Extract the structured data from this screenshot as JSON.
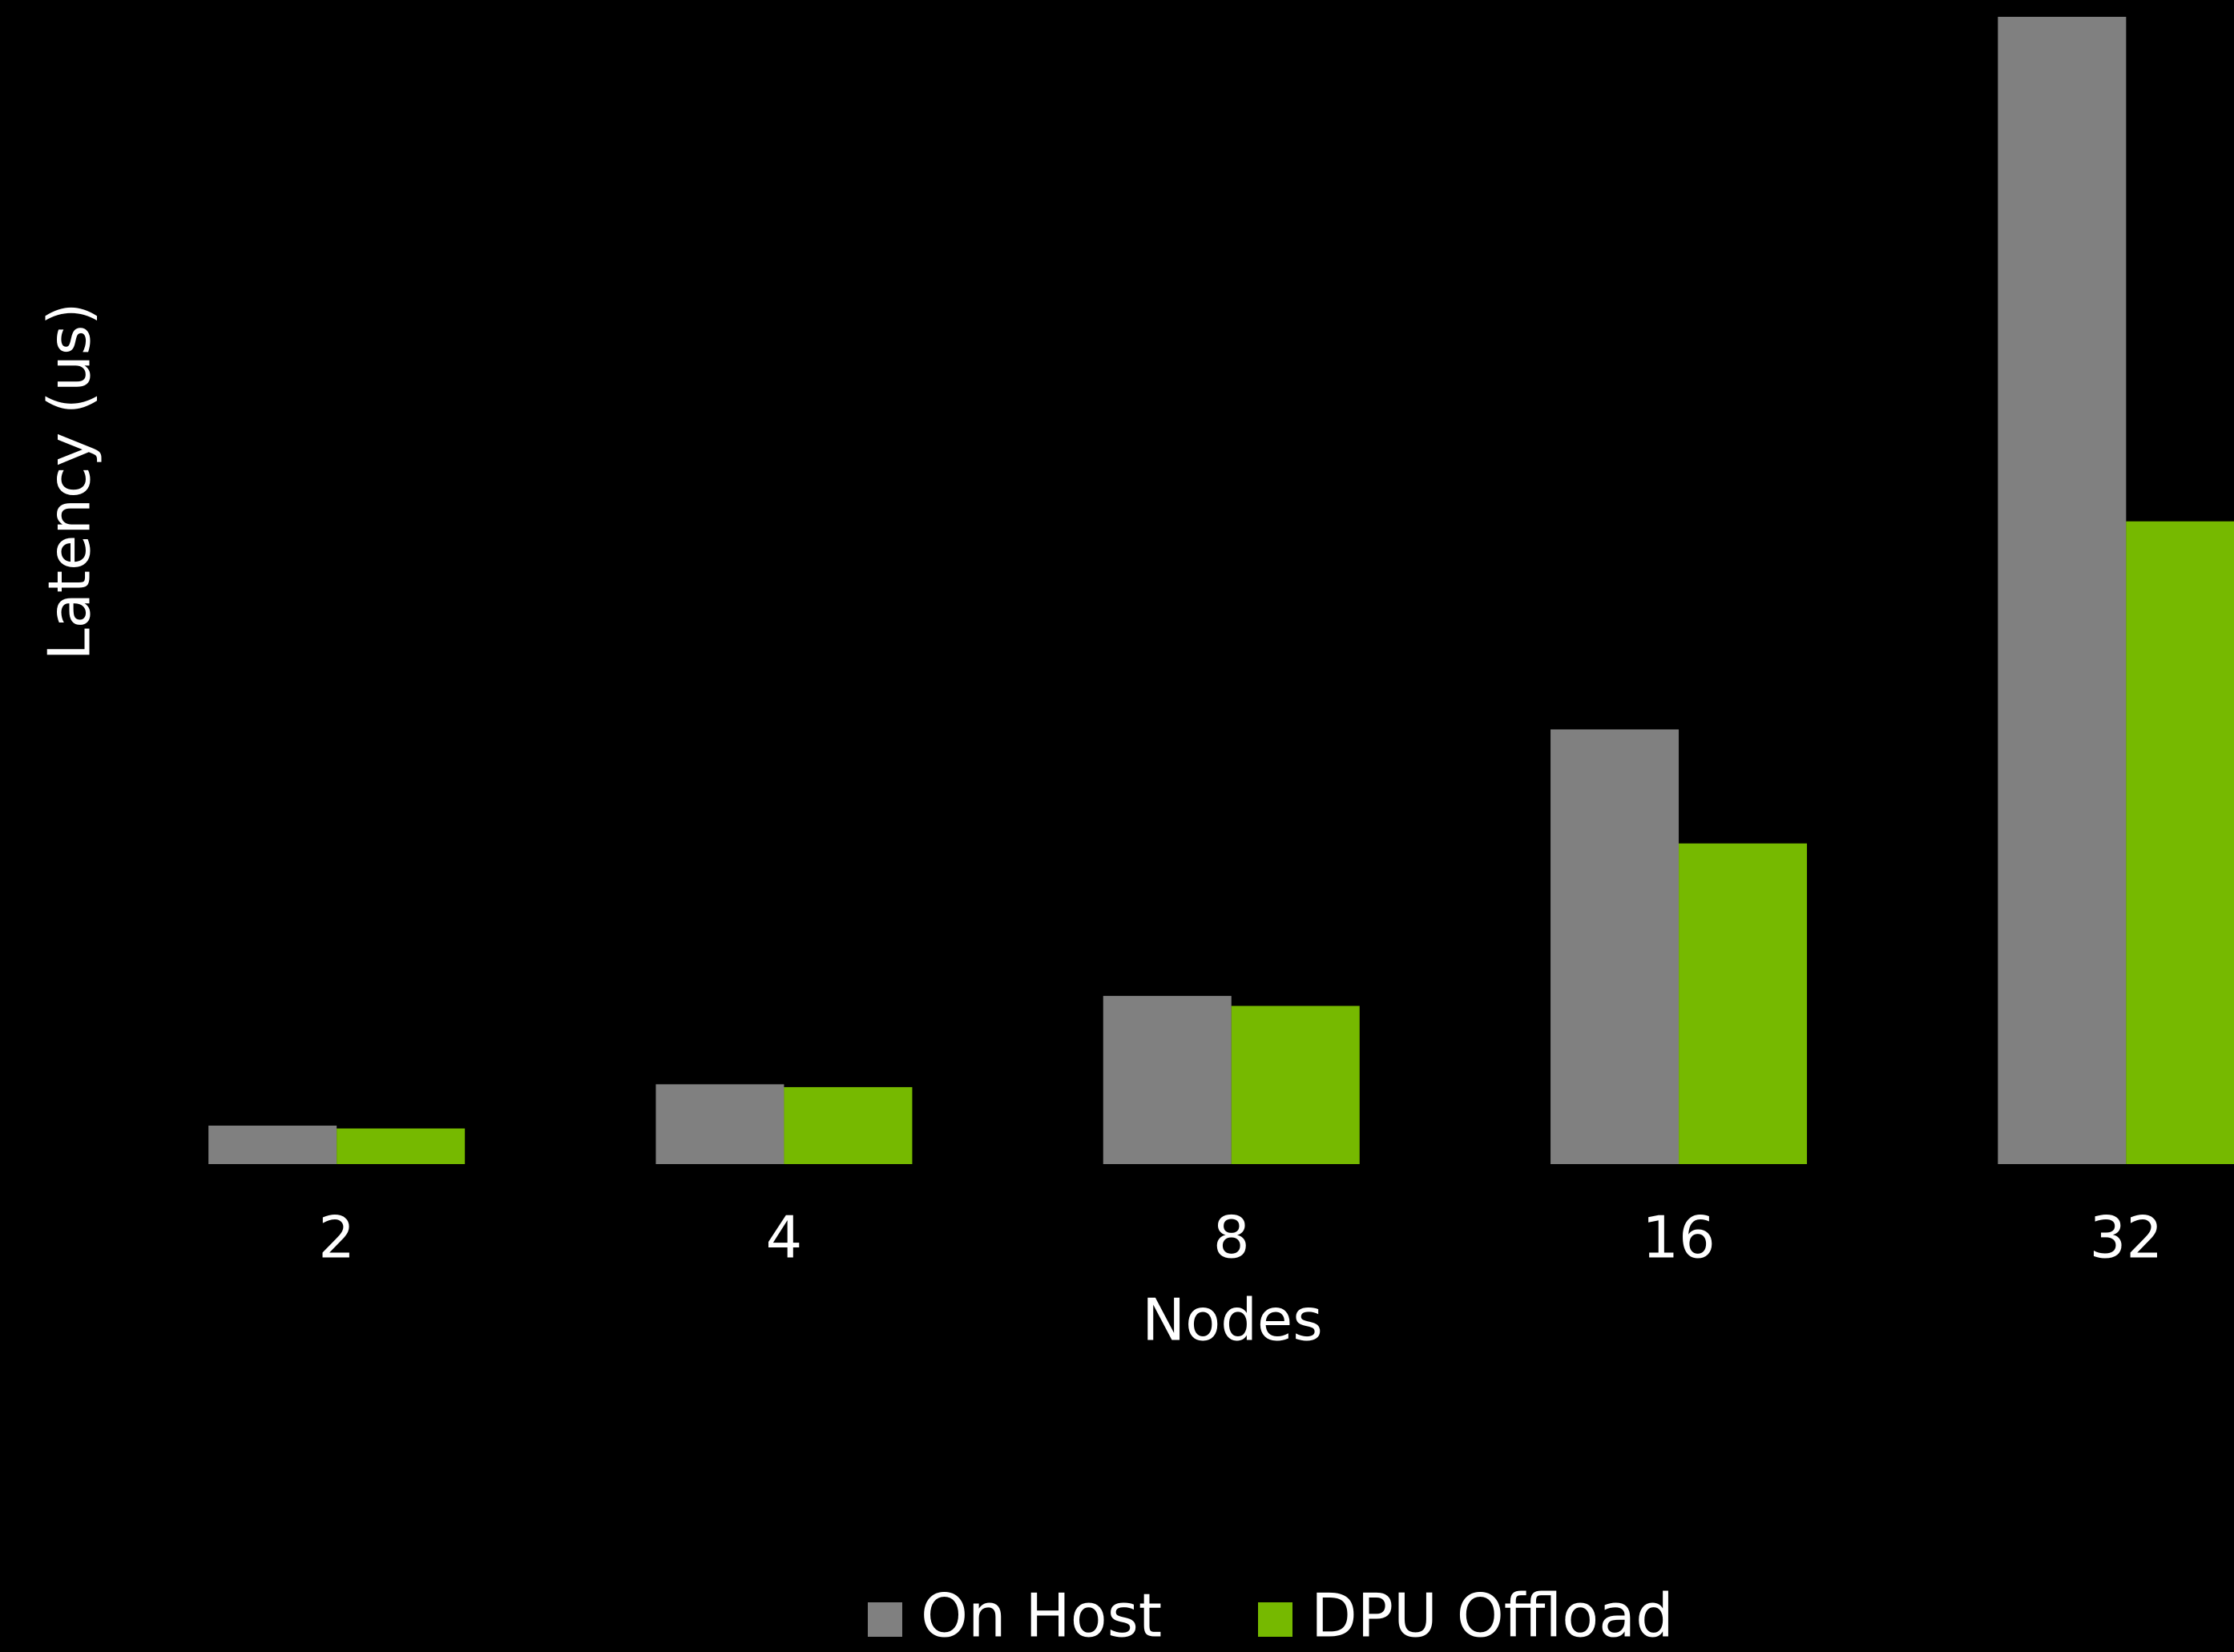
{
  "chart_data": {
    "type": "bar",
    "x_label": "Nodes",
    "y_label": "Latency (us)",
    "categories": [
      "2",
      "4",
      "8",
      "16",
      "32"
    ],
    "series": [
      {
        "name": "On Host",
        "color": "#808080",
        "values": [
          27,
          56,
          118,
          305,
          805
        ]
      },
      {
        "name": "DPU Offload",
        "color": "#76b900",
        "values": [
          25,
          54,
          111,
          225,
          451
        ]
      }
    ],
    "ylim": [
      0,
      805
    ],
    "grid": false,
    "legend": "bottom"
  }
}
